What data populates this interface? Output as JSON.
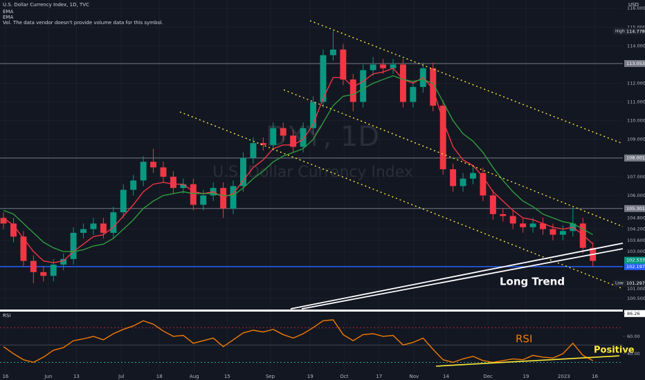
{
  "chart_data": {
    "type": "candlestick",
    "title": "U.S. Dollar Currency Index, 1D, TVC",
    "legend_lines": [
      "EMA",
      "EMA"
    ],
    "volume_note": "Vol. The data vendor doesn't provide volume data for this symbol.",
    "watermark": {
      "symbol": "DXY, 1D",
      "name": "U.S. Dollar Currency Index"
    },
    "currency": "USD",
    "up_color": "#089981",
    "down_color": "#f23645",
    "xlim": [
      -0.35,
      62
    ],
    "xticks": [
      {
        "value": 0.2,
        "label": "16"
      },
      {
        "value": 4.5,
        "label": "Jun"
      },
      {
        "value": 7.3,
        "label": "13"
      },
      {
        "value": 11.8,
        "label": "Jul"
      },
      {
        "value": 15.6,
        "label": "18"
      },
      {
        "value": 19.1,
        "label": "Aug"
      },
      {
        "value": 22.4,
        "label": "15"
      },
      {
        "value": 26.7,
        "label": "Sep"
      },
      {
        "value": 30.7,
        "label": "19"
      },
      {
        "value": 34.1,
        "label": "Oct"
      },
      {
        "value": 37.6,
        "label": "17"
      },
      {
        "value": 41.1,
        "label": "Nov"
      },
      {
        "value": 44.3,
        "label": "14"
      },
      {
        "value": 48.5,
        "label": "Dec"
      },
      {
        "value": 52.3,
        "label": "19"
      },
      {
        "value": 56.1,
        "label": "2023"
      },
      {
        "value": 59.2,
        "label": "16"
      }
    ],
    "open": [
      104.8,
      104.5,
      103.8,
      102.5,
      101.9,
      101.7,
      102.3,
      102.6,
      104.0,
      104.2,
      104.5,
      104.0,
      105.1,
      106.3,
      106.8,
      107.8,
      107.5,
      107.0,
      106.4,
      106.6,
      105.5,
      106.0,
      106.4,
      105.3,
      106.5,
      108.0,
      108.8,
      108.7,
      109.6,
      109.2,
      108.6,
      109.6,
      111.0,
      113.5,
      113.8,
      112.2,
      111.0,
      112.7,
      113.0,
      112.8,
      113.0,
      111.0,
      111.8,
      112.8,
      110.8,
      107.4,
      106.5,
      106.9,
      107.2,
      106.0,
      105.0,
      104.9,
      104.5,
      104.3,
      104.5,
      104.2,
      103.9,
      104.1,
      104.5,
      103.2
    ],
    "high": [
      105.1,
      104.8,
      104.1,
      102.8,
      102.2,
      102.6,
      102.9,
      104.3,
      104.5,
      104.8,
      104.8,
      105.4,
      106.6,
      107.1,
      108.1,
      108.5,
      107.8,
      107.3,
      106.9,
      106.9,
      106.3,
      106.7,
      106.7,
      106.8,
      108.3,
      109.1,
      109.1,
      109.9,
      109.9,
      109.5,
      109.9,
      111.3,
      113.8,
      114.778,
      114.1,
      112.5,
      113.0,
      113.4,
      113.3,
      113.3,
      113.3,
      112.1,
      113.1,
      113.1,
      111.1,
      107.7,
      107.2,
      107.5,
      107.5,
      106.3,
      105.3,
      105.2,
      104.8,
      104.8,
      104.8,
      104.5,
      104.4,
      105.3,
      104.8,
      103.5
    ],
    "low": [
      104.2,
      103.5,
      102.2,
      101.297,
      101.4,
      101.4,
      102.0,
      102.3,
      103.7,
      103.9,
      103.7,
      103.7,
      104.8,
      106.0,
      106.5,
      107.2,
      106.7,
      106.1,
      106.1,
      105.2,
      105.2,
      105.7,
      104.8,
      105.0,
      106.2,
      107.7,
      108.4,
      108.4,
      108.9,
      108.3,
      108.3,
      109.3,
      110.7,
      113.2,
      111.9,
      110.5,
      110.7,
      112.4,
      112.5,
      112.5,
      110.7,
      110.7,
      111.5,
      110.5,
      107.1,
      106.2,
      106.2,
      106.6,
      105.7,
      104.7,
      104.6,
      104.2,
      104.0,
      104.0,
      103.9,
      103.6,
      103.6,
      103.8,
      102.9,
      102.2
    ],
    "close": [
      104.5,
      103.8,
      102.5,
      101.9,
      101.7,
      102.3,
      102.6,
      104.0,
      104.2,
      104.5,
      104.0,
      105.1,
      106.3,
      106.8,
      107.8,
      107.5,
      107.0,
      106.4,
      106.6,
      105.5,
      106.0,
      106.4,
      105.3,
      106.5,
      108.0,
      108.8,
      108.7,
      109.6,
      109.2,
      108.6,
      109.6,
      111.0,
      113.5,
      113.8,
      112.2,
      111.0,
      112.7,
      113.0,
      112.8,
      113.0,
      111.0,
      111.8,
      112.8,
      110.8,
      107.4,
      106.5,
      106.9,
      107.2,
      106.0,
      105.0,
      104.9,
      104.5,
      104.3,
      104.5,
      104.2,
      103.9,
      104.1,
      104.5,
      103.2,
      102.5
    ],
    "series": [
      {
        "color": "#f23645",
        "values": [
          104.8,
          104.4,
          103.7,
          103.0,
          102.5,
          102.4,
          102.5,
          103.0,
          103.4,
          103.8,
          103.9,
          104.3,
          104.9,
          105.5,
          106.2,
          106.6,
          106.7,
          106.6,
          106.6,
          106.2,
          106.1,
          106.2,
          105.9,
          106.1,
          106.8,
          107.5,
          107.9,
          108.5,
          108.7,
          108.7,
          109.0,
          109.8,
          111.2,
          112.3,
          112.3,
          111.8,
          112.1,
          112.5,
          112.6,
          112.8,
          112.2,
          112.0,
          112.3,
          111.7,
          110.0,
          108.6,
          107.9,
          107.6,
          107.0,
          106.2,
          105.7,
          105.2,
          104.8,
          104.7,
          104.5,
          104.3,
          104.2,
          104.3,
          103.9,
          103.4
        ]
      },
      {
        "color": "#2e9e3e",
        "values": [
          105.2,
          105.0,
          104.5,
          104.0,
          103.5,
          103.2,
          103.0,
          103.0,
          103.1,
          103.3,
          103.4,
          103.7,
          104.2,
          104.7,
          105.3,
          105.7,
          106.0,
          106.1,
          106.2,
          106.1,
          106.1,
          106.1,
          106.0,
          106.0,
          106.4,
          106.9,
          107.3,
          107.8,
          108.1,
          108.3,
          108.5,
          109.0,
          109.9,
          110.8,
          111.3,
          111.4,
          111.7,
          112.0,
          112.2,
          112.4,
          112.2,
          112.1,
          112.2,
          112.0,
          111.0,
          110.0,
          109.3,
          108.9,
          108.3,
          107.5,
          106.8,
          106.2,
          105.7,
          105.4,
          105.0,
          104.8,
          104.6,
          104.5,
          104.2,
          103.9
        ]
      }
    ],
    "ylim": [
      99.9,
      116.45
    ],
    "yticks": [
      {
        "value": 116,
        "label": "116.000"
      },
      {
        "value": 115,
        "label": "115.000"
      },
      {
        "value": 114,
        "label": "114.000"
      },
      {
        "value": 112,
        "label": "112.000"
      },
      {
        "value": 111,
        "label": "111.000"
      },
      {
        "value": 110,
        "label": "110.000"
      },
      {
        "value": 109,
        "label": "109.000"
      },
      {
        "value": 107,
        "label": "107.000"
      },
      {
        "value": 106,
        "label": "106.000"
      },
      {
        "value": 104.8,
        "label": "104.800"
      },
      {
        "value": 104.2,
        "label": "104.200"
      },
      {
        "value": 103.6,
        "label": "103.600"
      },
      {
        "value": 103,
        "label": "103.000"
      },
      {
        "value": 101,
        "label": "101.000"
      },
      {
        "value": 100.5,
        "label": "100.500"
      }
    ],
    "price_levels": [
      {
        "value": 113.053,
        "color": "#787b86"
      },
      {
        "value": 108.001,
        "color": "#787b86"
      },
      {
        "value": 105.301,
        "color": "#787b86"
      },
      {
        "value": 102.197,
        "color": "#2962ff"
      }
    ],
    "last_price": {
      "value": 102.533,
      "color": "#089981"
    },
    "high_marker": {
      "label": "High",
      "value": 114.778
    },
    "low_marker": {
      "label": "Low",
      "value": 101.297
    },
    "annotations": [
      "Long Trend"
    ],
    "rsi": {
      "title": "RSI",
      "color": "#f57c00",
      "values": [
        48,
        40,
        33,
        30,
        36,
        44,
        47,
        55,
        57,
        60,
        56,
        63,
        68,
        72,
        78,
        74,
        66,
        60,
        61,
        52,
        55,
        58,
        48,
        56,
        64,
        67,
        65,
        68,
        62,
        58,
        63,
        70,
        78,
        79,
        62,
        55,
        62,
        63,
        60,
        61,
        50,
        53,
        58,
        45,
        33,
        30,
        34,
        37,
        32,
        30,
        32,
        34,
        33,
        38,
        36,
        35,
        40,
        52,
        38,
        32
      ],
      "ylim": [
        19.2,
        88.5
      ],
      "yticks": [
        86.26,
        {
          "value": 60,
          "label": "60.00"
        },
        {
          "value": 40,
          "label": "40.00"
        }
      ],
      "bands": [
        70,
        50,
        30
      ],
      "annotations": [
        "RSI",
        "Positive"
      ]
    }
  }
}
